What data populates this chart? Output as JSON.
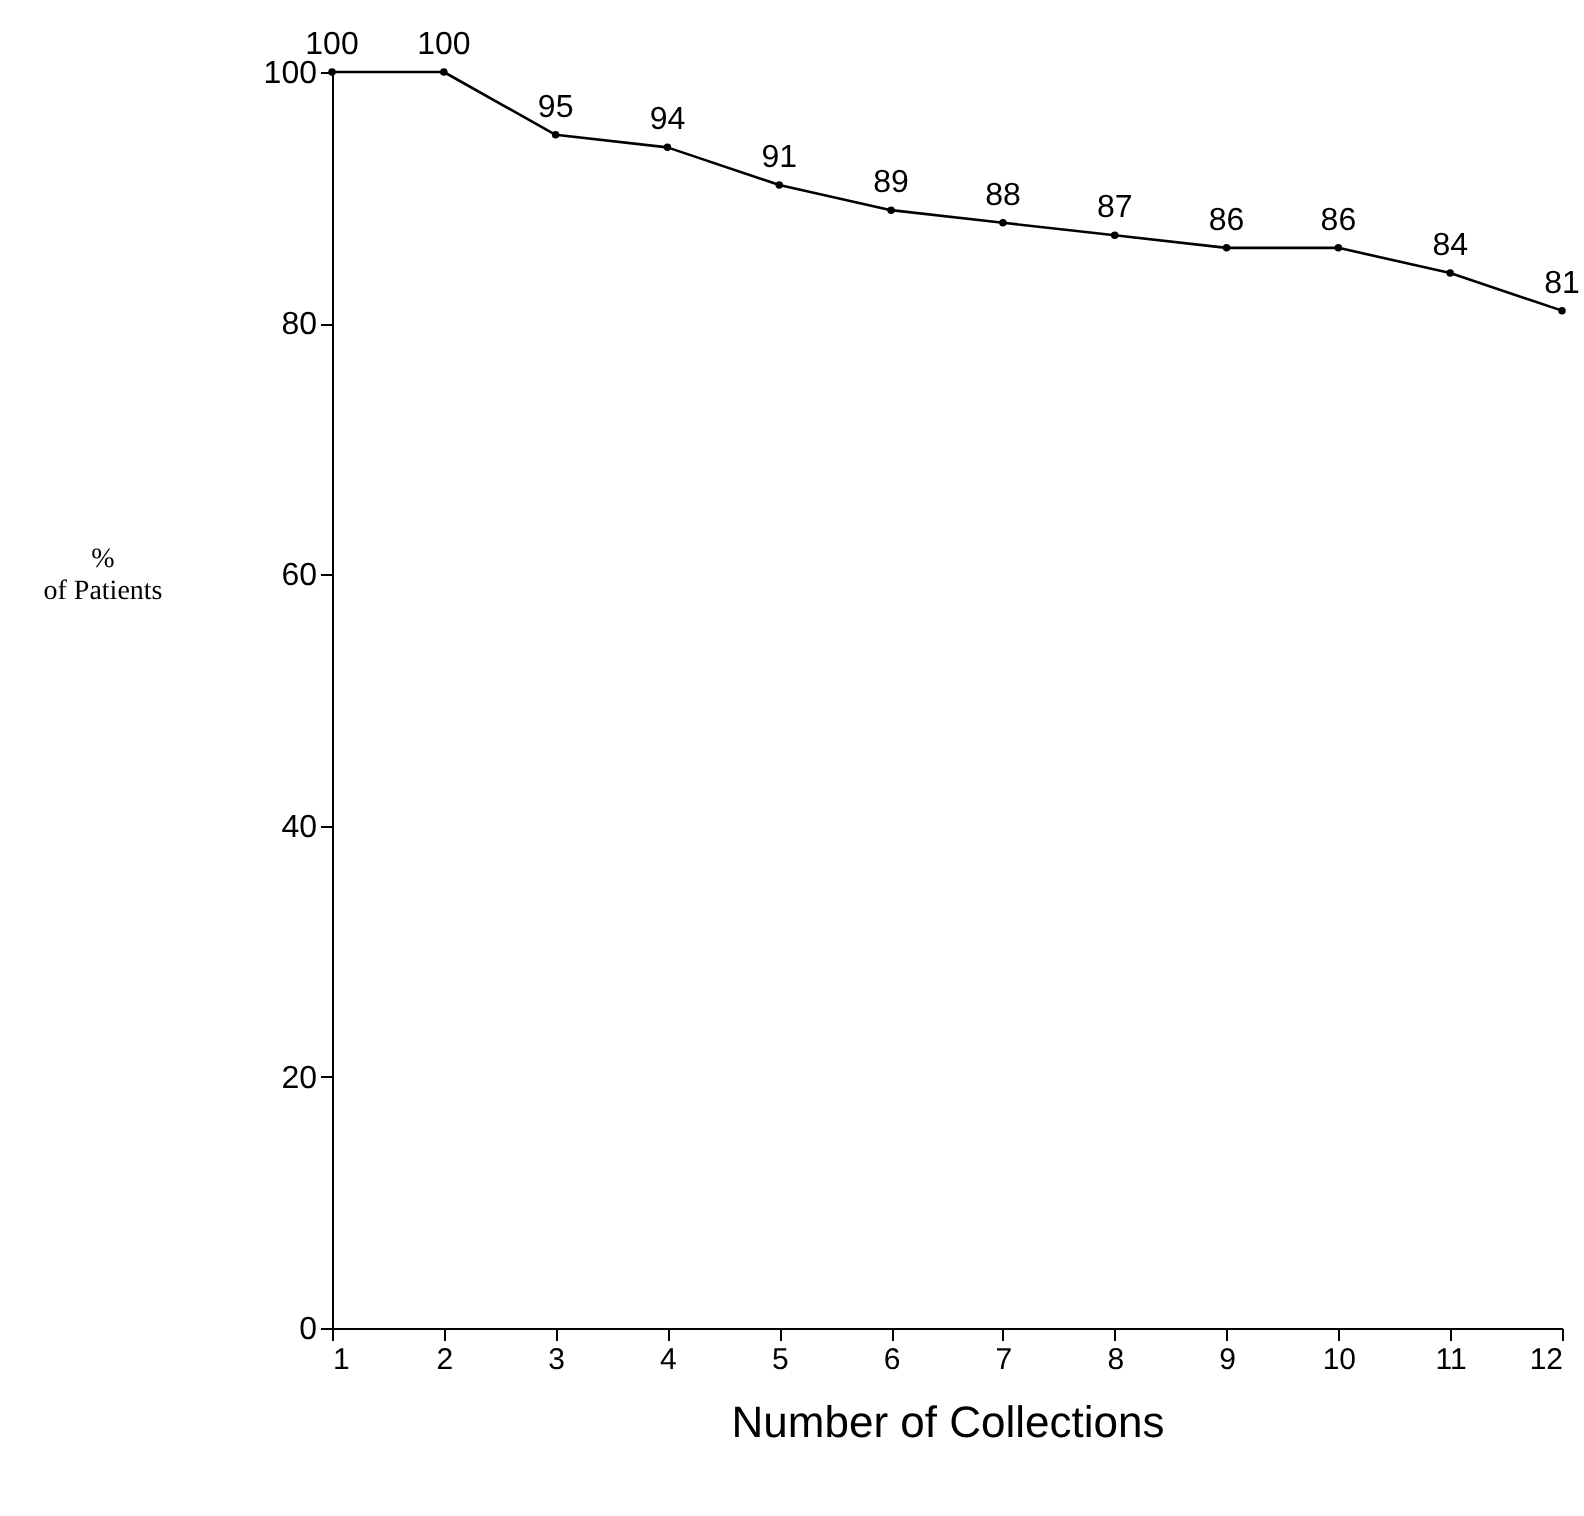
{
  "chart_data": {
    "type": "line",
    "xlabel": "Number of Collections",
    "ylabel": "%\nof Patients",
    "x": [
      1,
      2,
      3,
      4,
      5,
      6,
      7,
      8,
      9,
      10,
      11,
      12
    ],
    "values": [
      100,
      100,
      95,
      94,
      91,
      89,
      88,
      87,
      86,
      86,
      84,
      81
    ],
    "color": "#000000",
    "xlim": [
      1,
      12
    ],
    "xticks": [
      1,
      2,
      3,
      4,
      5,
      6,
      7,
      8,
      9,
      10,
      11,
      12
    ],
    "ylim": [
      0,
      100
    ],
    "yticks": [
      0,
      20,
      40,
      60,
      80,
      100
    ],
    "data_labels": true,
    "marker": "circle",
    "line_style": "solid",
    "grid": false
  }
}
